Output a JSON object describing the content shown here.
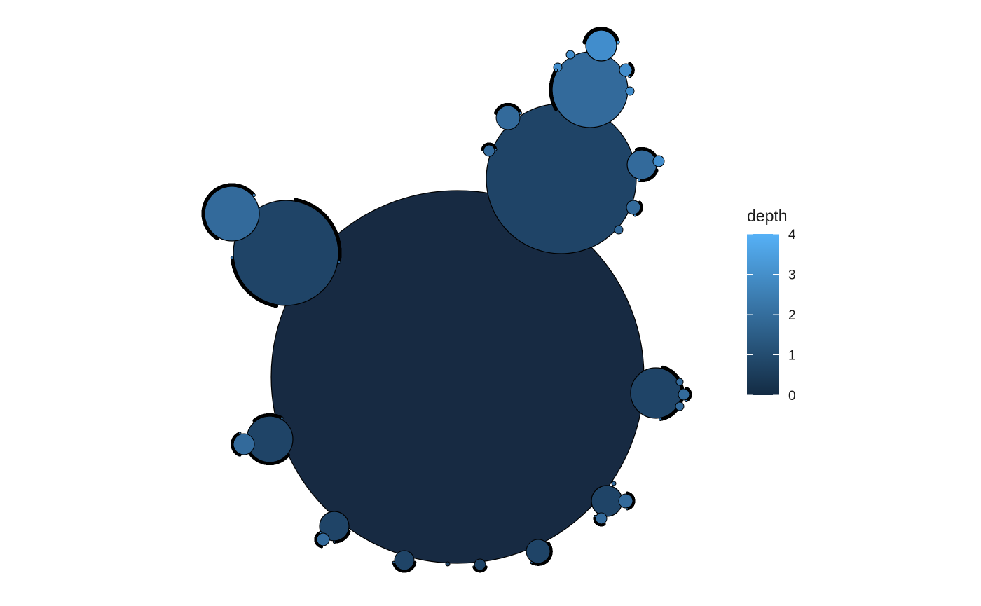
{
  "chart_data": {
    "type": "circle-packing",
    "legend": {
      "title": "depth",
      "min": 0,
      "max": 4,
      "ticks": [
        "0",
        "1",
        "2",
        "3",
        "4"
      ],
      "color_low": "#132B43",
      "color_high": "#56B1F7"
    },
    "node_colors": {
      "depth_0": "#172a42",
      "depth_1": "#1f4467",
      "depth_2": "#336a9b",
      "depth_3": "#418dcc",
      "depth_4": "#56B1F7"
    },
    "stroke_color": "#000000",
    "depth_nodes_visible": {
      "depth_0": 1,
      "depth_1": 13,
      "depth_2": 22
    }
  }
}
